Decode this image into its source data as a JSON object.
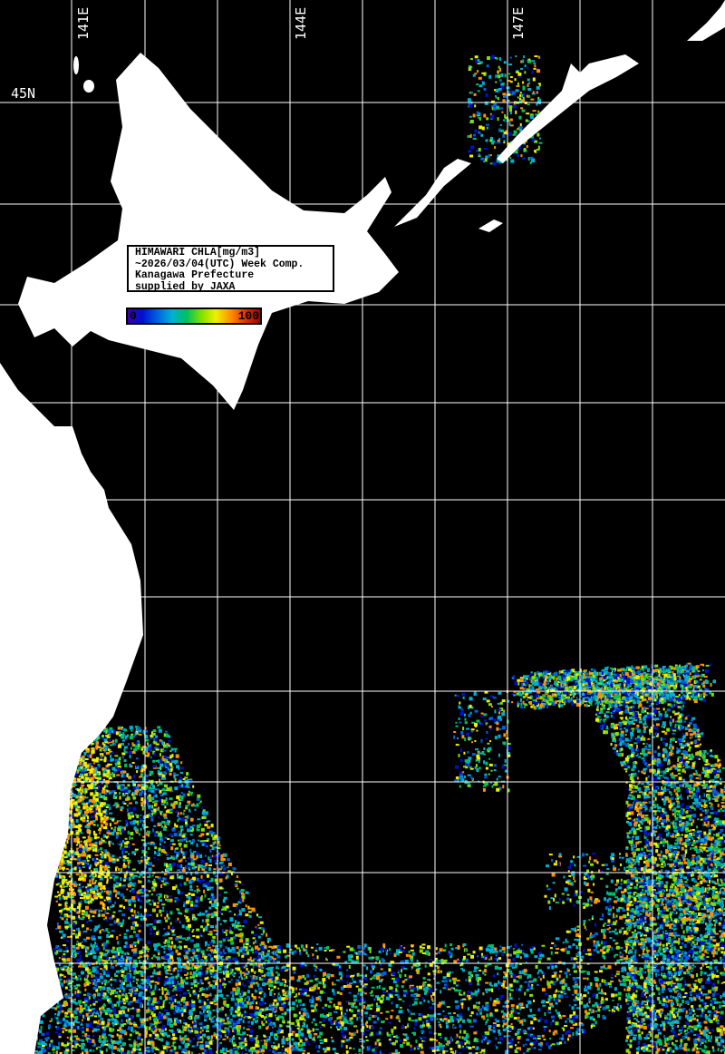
{
  "map": {
    "title_lines": [
      "HIMAWARI CHLA[mg/m3]",
      "~2026/03/04(UTC) Week Comp.",
      "Kanagawa Prefecture",
      "supplied by JAXA"
    ],
    "colorbar": {
      "min_label": "0",
      "max_label": "100",
      "colors": [
        "#3a00b0",
        "#0010d0",
        "#0060e0",
        "#00b0d0",
        "#00c060",
        "#80e000",
        "#f0f000",
        "#ff9000",
        "#e03000",
        "#a00000"
      ]
    },
    "lon_labels": [
      "141E",
      "144E",
      "147E"
    ],
    "lat_labels": [
      "45N"
    ],
    "land_color": "#ffffff",
    "ocean_color": "#000000",
    "grid_color": "#ffffff"
  }
}
